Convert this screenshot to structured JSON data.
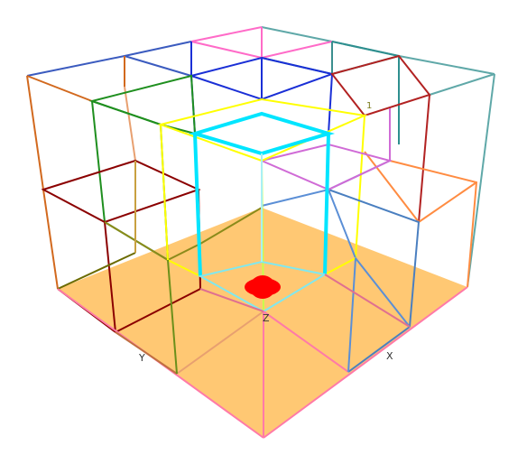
{
  "axes": {
    "x_label": "X",
    "y_label": "Y",
    "z_label": "Z"
  },
  "marker_label": "1",
  "colors": {
    "floor_fill": "#ffc56b",
    "marker": "#ff0000",
    "highlight": "#00e5ff",
    "selection": "#ffff00"
  }
}
